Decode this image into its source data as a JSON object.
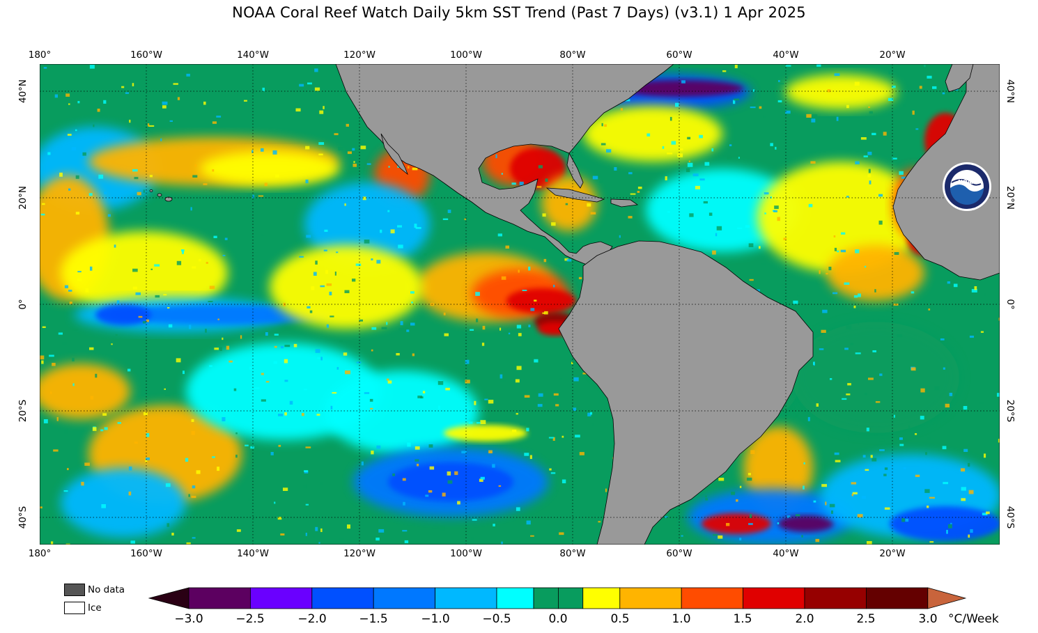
{
  "title": "NOAA Coral Reef Watch Daily 5km SST Trend (Past 7 Days)  (v3.1)   1 Apr 2025",
  "lon_ticks": [
    "180°",
    "160°W",
    "140°W",
    "120°W",
    "100°W",
    "80°W",
    "60°W",
    "40°W",
    "20°W"
  ],
  "lat_ticks": [
    "40°N",
    "20°N",
    "0°",
    "20°S",
    "40°S"
  ],
  "legend": {
    "no_data": "No data",
    "ice": "Ice"
  },
  "colorbar": {
    "labels": [
      "−3.0",
      "−2.5",
      "−2.0",
      "−1.5",
      "−1.0",
      "−0.5",
      "0.0",
      "0.5",
      "1.0",
      "1.5",
      "2.0",
      "2.5",
      "3.0"
    ],
    "unit": "°C/Week",
    "colors": [
      "#5c0060",
      "#6a00ff",
      "#0050ff",
      "#0078ff",
      "#00b8ff",
      "#00ffff",
      "#089c5e",
      "#ffff00",
      "#ffb400",
      "#ff4c00",
      "#e00000",
      "#960000",
      "#640000"
    ],
    "low_arrow_color": "#2a0014",
    "high_arrow_color": "#c8643c"
  },
  "map": {
    "land_color": "#999999",
    "ocean_base_color": "#089c5e",
    "logo": "NOAA"
  }
}
